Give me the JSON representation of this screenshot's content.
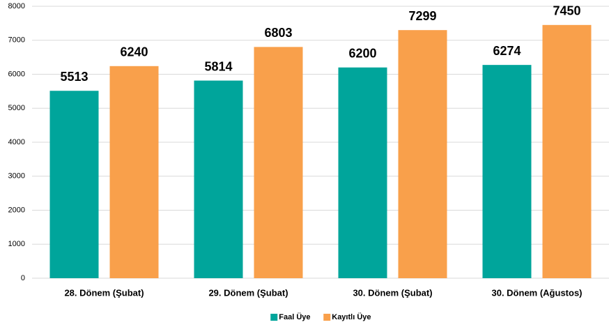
{
  "chart_data": {
    "type": "bar",
    "categories": [
      "28. Dönem (Şubat)",
      "29. Dönem (Şubat)",
      "30. Dönem (Şubat)",
      "30. Dönem (Ağustos)"
    ],
    "series": [
      {
        "name": "Faal Üye",
        "color": "#00a59b",
        "values": [
          5513,
          5814,
          6200,
          6274
        ]
      },
      {
        "name": "Kayıtlı Üye",
        "color": "#f9a04b",
        "values": [
          6240,
          6803,
          7299,
          7450
        ]
      }
    ],
    "ylim": [
      0,
      8000
    ],
    "yticks": [
      0,
      1000,
      2000,
      3000,
      4000,
      5000,
      6000,
      7000,
      8000
    ],
    "grid": true,
    "legend": "bottom"
  }
}
